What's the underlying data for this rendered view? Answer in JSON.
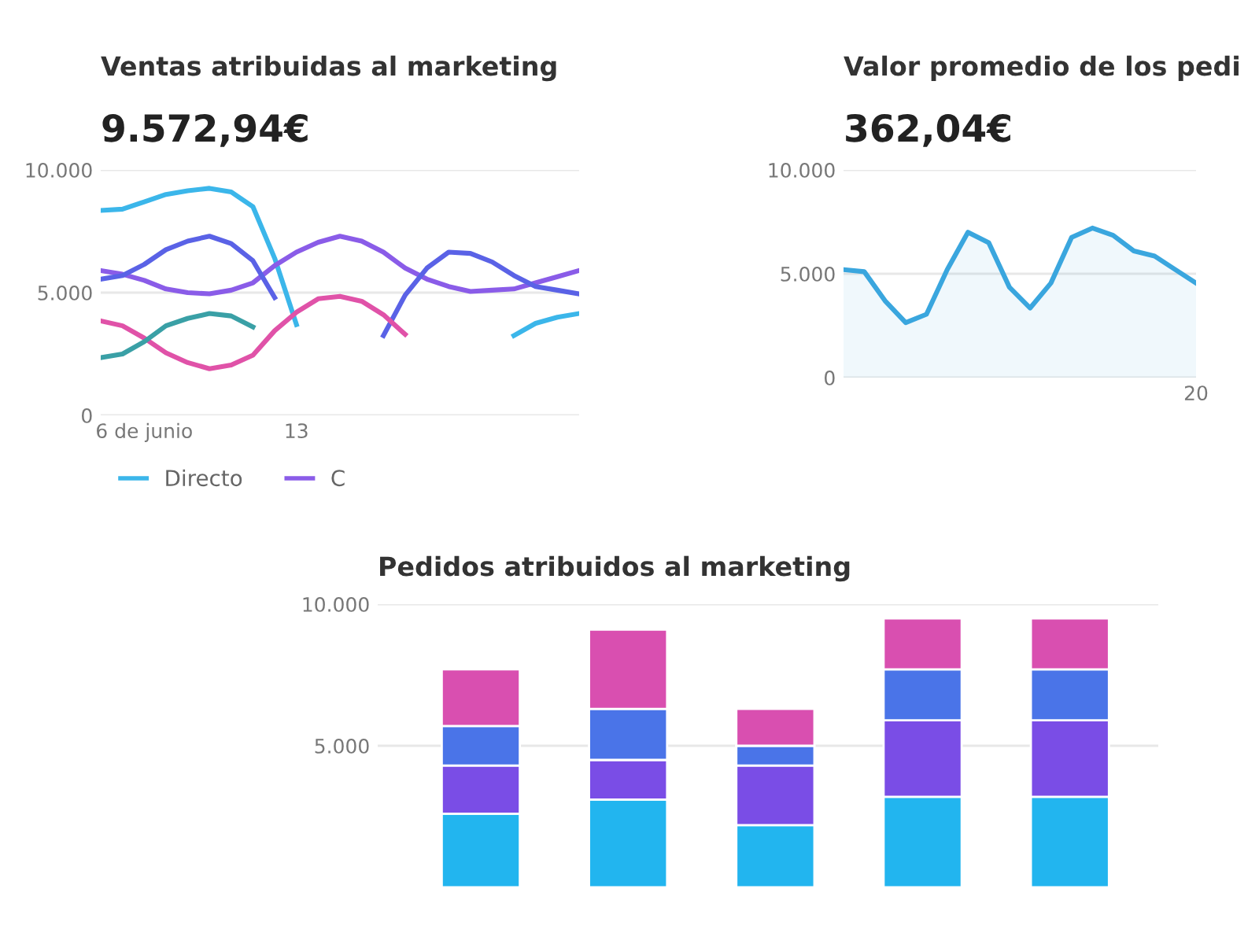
{
  "chart_data": [
    {
      "type": "line",
      "title": "Ventas atribuidas al marketing",
      "subtitle": "9.572,94€",
      "categories": [
        null,
        null,
        "6 de junio",
        null,
        null,
        null,
        null,
        null,
        null,
        "13",
        null,
        null,
        null,
        null,
        null,
        null,
        null,
        null,
        null,
        null,
        null,
        null,
        null
      ],
      "ylim": [
        0,
        10000
      ],
      "yticks": [
        {
          "value": 0,
          "label": "0"
        },
        {
          "value": 5000,
          "label": "5.000"
        },
        {
          "value": 10000,
          "label": "10.000"
        }
      ],
      "grid": "y",
      "legend": "bottom",
      "line_style": "solid",
      "marker": "none",
      "series": [
        {
          "name": "Directo",
          "color": "#3bb6ea",
          "values": [
            8350,
            8400,
            8700,
            9000,
            9150,
            9250,
            9100,
            8500,
            6400,
            3700,
            null,
            null,
            null,
            null,
            null,
            null,
            null,
            null,
            null,
            3250,
            3750,
            4000,
            4150
          ]
        },
        {
          "name": "C",
          "color": "#8a5ce8",
          "values": [
            5900,
            5750,
            5500,
            5150,
            5000,
            4950,
            5100,
            5400,
            6100,
            6650,
            7050,
            7300,
            7100,
            6650,
            6000,
            5550,
            5250,
            5050,
            5100,
            5150,
            5400,
            5650,
            5900
          ]
        },
        {
          "color": "#5a62e6",
          "values": [
            5550,
            5700,
            6150,
            6750,
            7100,
            7300,
            7000,
            6300,
            4800,
            null,
            null,
            null,
            null,
            3250,
            4900,
            6000,
            6650,
            6600,
            6250,
            5700,
            5250,
            5100,
            4950
          ]
        },
        {
          "color": "#e052a8",
          "values": [
            3850,
            3650,
            3150,
            2550,
            2150,
            1900,
            2050,
            2450,
            3450,
            4200,
            4750,
            4850,
            4650,
            4100,
            3300,
            null,
            null,
            null,
            null,
            null,
            null,
            null,
            null
          ]
        },
        {
          "color": "#3aa0a6",
          "values": [
            2350,
            2500,
            3000,
            3650,
            3950,
            4150,
            4050,
            3600,
            null,
            null,
            null,
            null,
            null,
            null,
            null,
            null,
            null,
            null,
            null,
            null,
            null,
            null,
            null
          ]
        }
      ]
    },
    {
      "type": "area",
      "title": "Valor promedio de los pedi",
      "subtitle": "362,04€",
      "categories": [
        null,
        null,
        null,
        null,
        null,
        null,
        null,
        null,
        null,
        null,
        null,
        null,
        null,
        null,
        null,
        null,
        null,
        "20"
      ],
      "ylim": [
        0,
        10000
      ],
      "yticks": [
        {
          "value": 0,
          "label": "0"
        },
        {
          "value": 5000,
          "label": "5.000"
        },
        {
          "value": 10000,
          "label": "10.000"
        }
      ],
      "grid": "y",
      "series": [
        {
          "color": "#3aa6de",
          "values": [
            5200,
            5100,
            3700,
            2650,
            3050,
            5200,
            7000,
            6500,
            4350,
            3350,
            4550,
            6750,
            7200,
            6850,
            6100,
            5850,
            5200,
            4550
          ]
        }
      ]
    },
    {
      "type": "bar",
      "stacked": true,
      "title": "Pedidos atribuidos al marketing",
      "categories": [
        null,
        null,
        null,
        null,
        null
      ],
      "ylim": [
        0,
        10000
      ],
      "yticks": [
        {
          "value": 5000,
          "label": "5.000"
        },
        {
          "value": 10000,
          "label": "10.000"
        }
      ],
      "grid": "y",
      "series": [
        {
          "color": "#22b5ef",
          "values": [
            2600,
            3100,
            2200,
            3200,
            3200
          ]
        },
        {
          "color": "#7a4de6",
          "values": [
            1700,
            1400,
            2100,
            2700,
            2700
          ]
        },
        {
          "color": "#4a74e8",
          "values": [
            1400,
            1800,
            700,
            1800,
            1800
          ]
        },
        {
          "color": "#d94fb0",
          "values": [
            2000,
            2800,
            1300,
            1800,
            1800
          ]
        }
      ]
    }
  ]
}
